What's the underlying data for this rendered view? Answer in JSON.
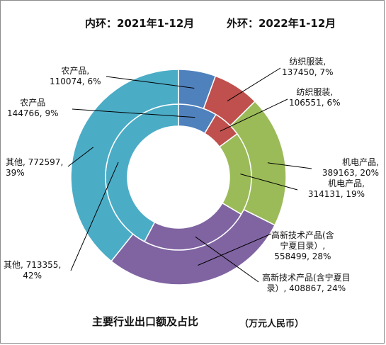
{
  "header": {
    "inner_title": "内环：2021年1-12月",
    "outer_title": "外环：2022年1-12月"
  },
  "footer": {
    "title": "主要行业出口额及占比",
    "unit": "（万元人民币）"
  },
  "chart_data": {
    "type": "pie",
    "subtype": "double-ring-doughnut",
    "title": "主要行业出口额及占比",
    "unit": "万元人民币",
    "categories": [
      "农产品",
      "纺织服装",
      "机电产品",
      "高新技术产品(含宁夏目录)",
      "其他"
    ],
    "colors": [
      "#4f81bd",
      "#c0504d",
      "#9bbb59",
      "#8064a2",
      "#4bacc6"
    ],
    "series": [
      {
        "name": "2021年1-12月",
        "ring": "inner",
        "values": [
          144766,
          106551,
          314131,
          408867,
          713355
        ],
        "percent": [
          9,
          6,
          19,
          24,
          42
        ]
      },
      {
        "name": "2022年1-12月",
        "ring": "outer",
        "values": [
          110074,
          137450,
          389163,
          558499,
          772597
        ],
        "percent": [
          6,
          7,
          20,
          28,
          39
        ]
      }
    ],
    "labels": {
      "inner": [
        {
          "name": "农产品",
          "value": "144766, 9%"
        },
        {
          "name": "纺织服装,",
          "value": "106551, 6%"
        },
        {
          "name": "机电产品,",
          "value": "314131, 19%"
        },
        {
          "name": "高新技术产品(含宁夏目",
          "value": "录）, 408867, 24%"
        },
        {
          "name": "其他, 713355,",
          "value": "42%"
        }
      ],
      "outer": [
        {
          "name": "农产品,",
          "value": "110074, 6%"
        },
        {
          "name": "纺织服装,",
          "value": "137450, 7%"
        },
        {
          "name": "机电产品,",
          "value": "389163, 20%"
        },
        {
          "name": "高新技术产品(含",
          "name2": "宁夏目录）,",
          "value": "558499, 28%"
        },
        {
          "name": "其他, 772597,",
          "value": "39%"
        }
      ]
    }
  }
}
